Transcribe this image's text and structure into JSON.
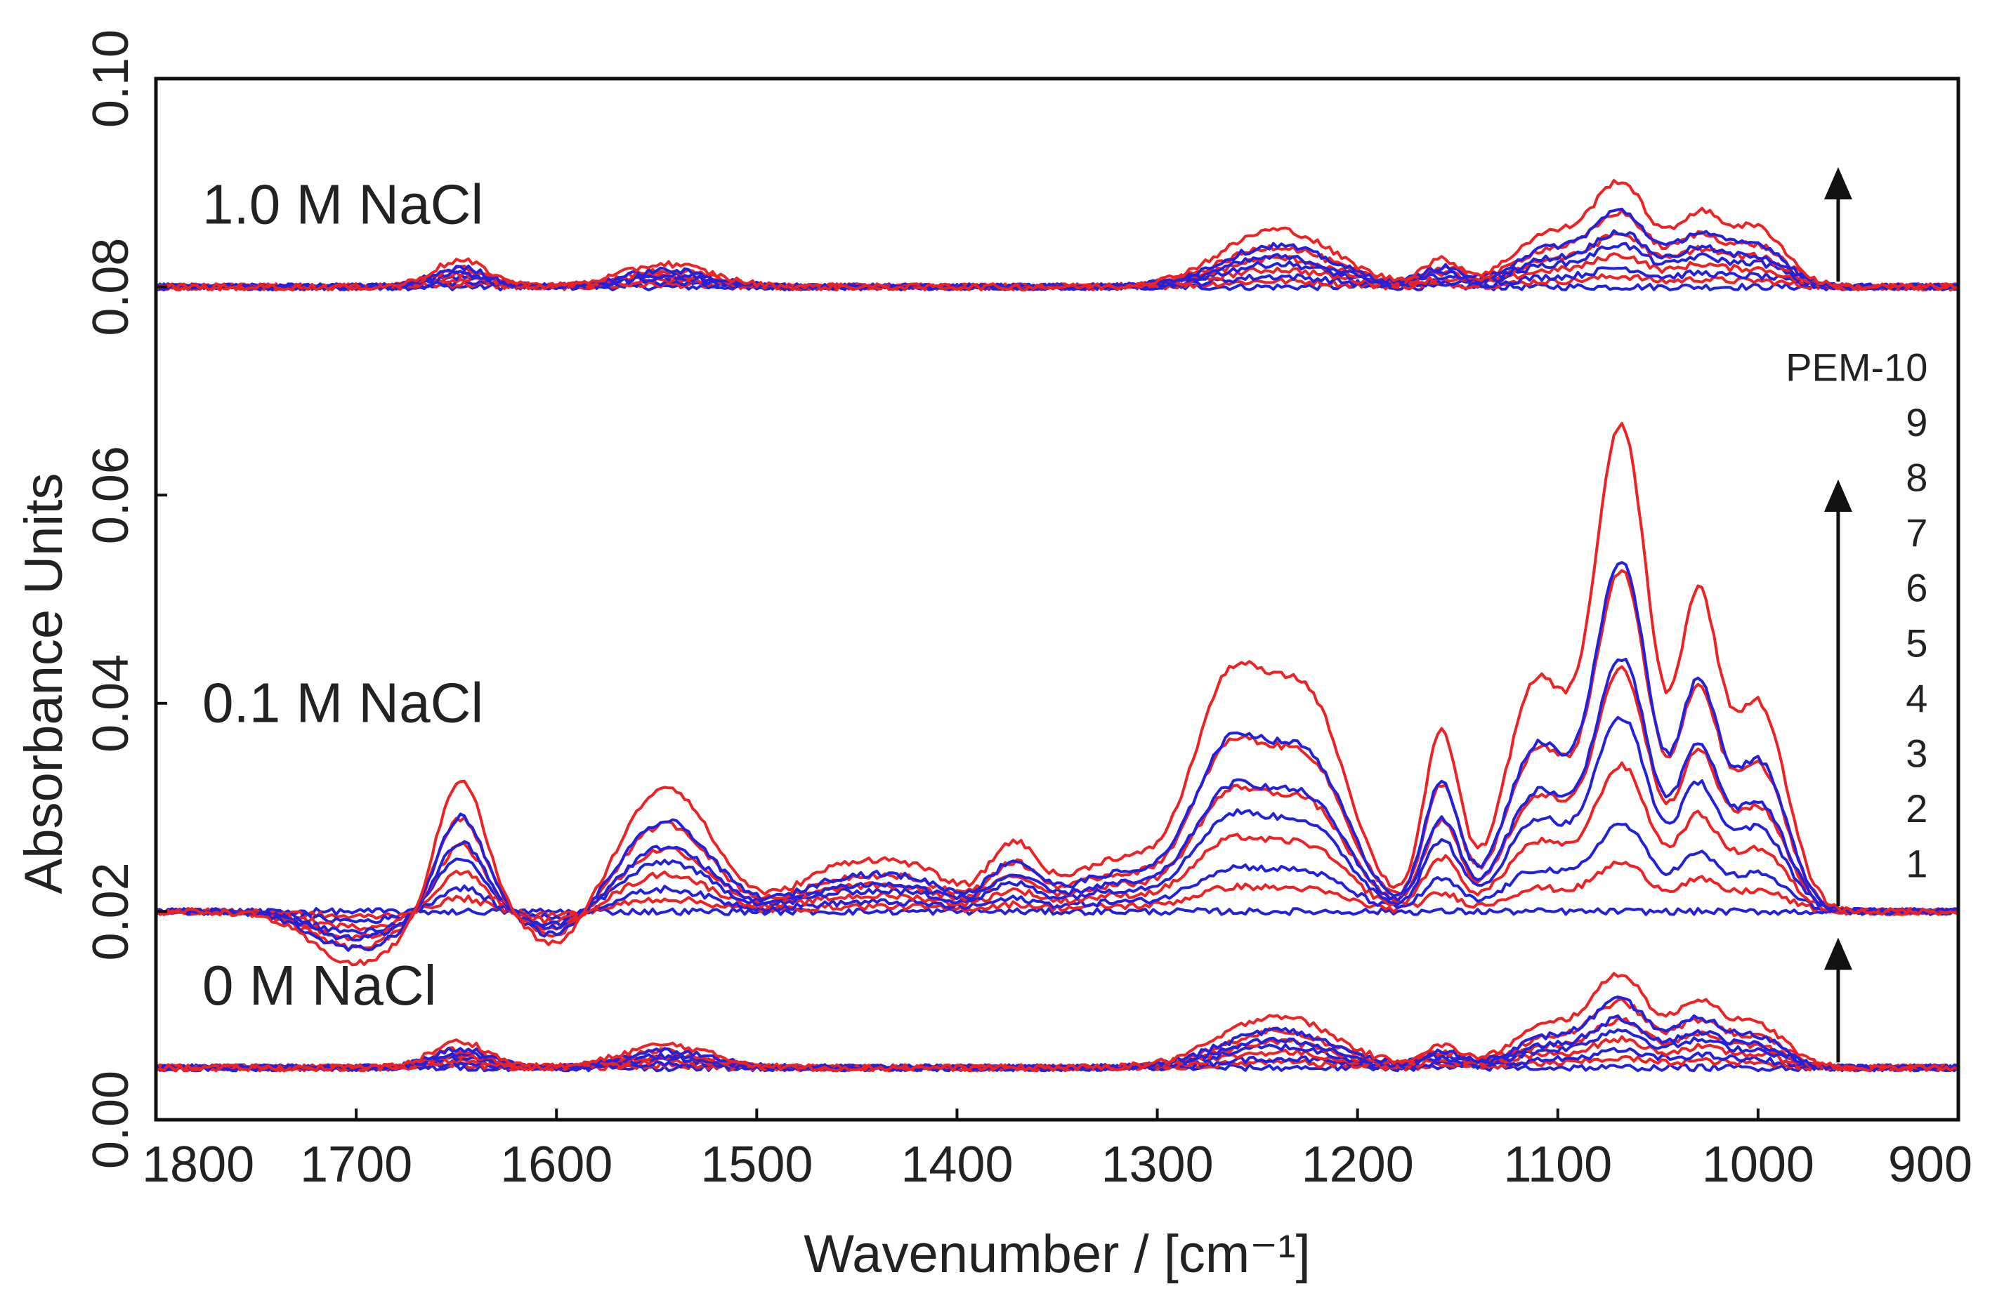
{
  "chart_data": {
    "type": "line",
    "title": "",
    "xlabel": "Wavenumber / [cm⁻¹]",
    "ylabel": "Absorbance Units",
    "xlim": [
      1800,
      900
    ],
    "ylim": [
      0.0,
      0.1
    ],
    "x_reversed": true,
    "xticks": [
      1800,
      1700,
      1600,
      1500,
      1400,
      1300,
      1200,
      1100,
      1000,
      900
    ],
    "xtick_labels": [
      "1800",
      "1700",
      "1600",
      "1500",
      "1400",
      "1300",
      "1200",
      "1100",
      "1000",
      "900"
    ],
    "yticks": [
      0.0,
      0.02,
      0.04,
      0.06,
      0.08,
      0.1
    ],
    "ytick_labels": [
      "0.00",
      "0.02",
      "0.04",
      "0.06",
      "0.08",
      "0.10"
    ],
    "series_colors": [
      "#2222dd",
      "#ee2222"
    ],
    "series_color_note": "alternating blue / red layers",
    "panels": [
      {
        "label": "1.0 M NaCl",
        "baseline": 0.08,
        "arrow_x": 960,
        "arrow_to": 0.0915,
        "peaks": [
          {
            "x": 1648,
            "h": 0.0025,
            "w": 14
          },
          {
            "x": 1545,
            "h": 0.0022,
            "w": 22
          },
          {
            "x": 1240,
            "h": 0.0055,
            "w": 28
          },
          {
            "x": 1158,
            "h": 0.0025,
            "w": 10
          },
          {
            "x": 1105,
            "h": 0.005,
            "w": 18
          },
          {
            "x": 1068,
            "h": 0.0095,
            "w": 14
          },
          {
            "x": 1030,
            "h": 0.0065,
            "w": 12
          },
          {
            "x": 1000,
            "h": 0.0055,
            "w": 14
          }
        ],
        "dips": []
      },
      {
        "label": "0.1 M NaCl",
        "baseline": 0.02,
        "arrow_x": 960,
        "arrow_to": 0.0615,
        "peaks": [
          {
            "x": 1648,
            "h": 0.013,
            "w": 12
          },
          {
            "x": 1545,
            "h": 0.012,
            "w": 22
          },
          {
            "x": 1458,
            "h": 0.004,
            "w": 22
          },
          {
            "x": 1420,
            "h": 0.0035,
            "w": 20
          },
          {
            "x": 1372,
            "h": 0.006,
            "w": 12
          },
          {
            "x": 1320,
            "h": 0.005,
            "w": 25
          },
          {
            "x": 1265,
            "h": 0.02,
            "w": 18
          },
          {
            "x": 1225,
            "h": 0.02,
            "w": 20
          },
          {
            "x": 1158,
            "h": 0.017,
            "w": 9
          },
          {
            "x": 1110,
            "h": 0.022,
            "w": 16
          },
          {
            "x": 1068,
            "h": 0.046,
            "w": 14
          },
          {
            "x": 1030,
            "h": 0.028,
            "w": 10
          },
          {
            "x": 1000,
            "h": 0.02,
            "w": 14
          }
        ],
        "dips": [
          {
            "x": 1700,
            "h": 0.005,
            "w": 22
          },
          {
            "x": 1600,
            "h": 0.0035,
            "w": 14
          }
        ]
      },
      {
        "label": "0 M NaCl",
        "baseline": 0.005,
        "arrow_x": 960,
        "arrow_to": 0.0175,
        "peaks": [
          {
            "x": 1648,
            "h": 0.0025,
            "w": 14
          },
          {
            "x": 1545,
            "h": 0.0022,
            "w": 22
          },
          {
            "x": 1240,
            "h": 0.005,
            "w": 28
          },
          {
            "x": 1158,
            "h": 0.002,
            "w": 10
          },
          {
            "x": 1105,
            "h": 0.004,
            "w": 18
          },
          {
            "x": 1068,
            "h": 0.0085,
            "w": 14
          },
          {
            "x": 1030,
            "h": 0.006,
            "w": 12
          },
          {
            "x": 1000,
            "h": 0.004,
            "w": 14
          }
        ],
        "dips": []
      }
    ],
    "layers": {
      "labels": [
        "1",
        "2",
        "3",
        "4",
        "5",
        "6",
        "7",
        "8",
        "9",
        "PEM-10"
      ],
      "scales": [
        0.0,
        0.1,
        0.18,
        0.3,
        0.4,
        0.5,
        0.52,
        0.7,
        0.72,
        1.0
      ],
      "label_x": 930,
      "label_values": [
        0.0245,
        0.0298,
        0.0351,
        0.0404,
        0.0457,
        0.051,
        0.0563,
        0.0616,
        0.0669,
        0.0722
      ]
    }
  }
}
